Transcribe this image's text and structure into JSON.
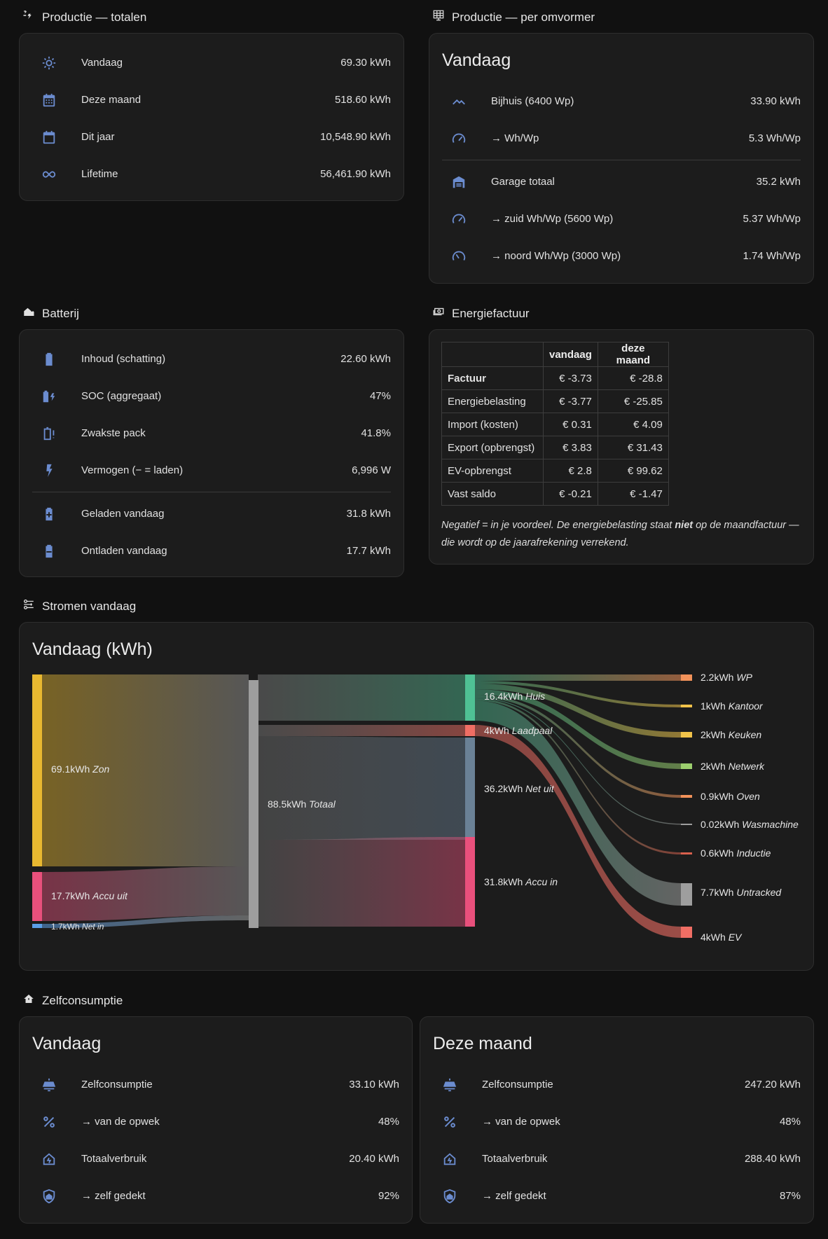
{
  "sections": {
    "productie_totalen": "Productie — totalen",
    "productie_omvormer": "Productie — per omvormer",
    "batterij": "Batterij",
    "energiefactuur": "Energiefactuur",
    "stromen": "Stromen vandaag",
    "zelfconsumptie": "Zelfconsumptie"
  },
  "totalen": [
    {
      "icon": "sun-icon",
      "label": "Vandaag",
      "value": "69.30 kWh"
    },
    {
      "icon": "calendar-month-icon",
      "label": "Deze maand",
      "value": "518.60 kWh"
    },
    {
      "icon": "calendar-icon",
      "label": "Dit jaar",
      "value": "10,548.90 kWh"
    },
    {
      "icon": "infinity-icon",
      "label": "Lifetime",
      "value": "56,461.90 kWh"
    }
  ],
  "omvormer": {
    "title": "Vandaag",
    "rows": [
      {
        "icon": "roof-icon",
        "label": "Bijhuis (6400 Wp)",
        "value": "33.90 kWh"
      },
      {
        "icon": "gauge-icon",
        "label": "→ Wh/Wp",
        "value": "5.3 Wh/Wp"
      },
      {
        "icon": "garage-icon",
        "label": "Garage totaal",
        "value": "35.2 kWh"
      },
      {
        "icon": "gauge-icon",
        "label": "→ zuid Wh/Wp (5600 Wp)",
        "value": "5.37 Wh/Wp"
      },
      {
        "icon": "gauge-low-icon",
        "label": "→ noord Wh/Wp (3000 Wp)",
        "value": "1.74 Wh/Wp"
      }
    ]
  },
  "batterij": [
    {
      "icon": "battery-heart-icon",
      "label": "Inhoud (schatting)",
      "value": "22.60 kWh"
    },
    {
      "icon": "battery-charging-icon",
      "label": "SOC (aggregaat)",
      "value": "47%"
    },
    {
      "icon": "battery-alert-icon",
      "label": "Zwakste pack",
      "value": "41.8%"
    },
    {
      "icon": "lightning-icon",
      "label": "Vermogen (− = laden)",
      "value": "6,996 W"
    },
    {
      "icon": "battery-plus-icon",
      "label": "Geladen vandaag",
      "value": "31.8 kWh"
    },
    {
      "icon": "battery-minus-icon",
      "label": "Ontladen vandaag",
      "value": "17.7 kWh"
    }
  ],
  "factuur": {
    "headers": [
      "",
      "vandaag",
      "deze maand"
    ],
    "rows": [
      {
        "name": "Factuur",
        "vandaag": "€ -3.73",
        "maand": "€ -28.8"
      },
      {
        "name": "Energiebelasting",
        "vandaag": "€ -3.77",
        "maand": "€ -25.85"
      },
      {
        "name": "Import (kosten)",
        "vandaag": "€ 0.31",
        "maand": "€ 4.09"
      },
      {
        "name": "Export (opbrengst)",
        "vandaag": "€ 3.83",
        "maand": "€ 31.43"
      },
      {
        "name": "EV-opbrengst",
        "vandaag": "€ 2.8",
        "maand": "€ 99.62"
      },
      {
        "name": "Vast saldo",
        "vandaag": "€ -0.21",
        "maand": "€ -1.47"
      }
    ],
    "note_pre": "Negatief = in je voordeel. De energiebelasting staat ",
    "note_bold": "niet",
    "note_post": " op de maandfactuur — die wordt op de jaarafrekening verrekend."
  },
  "sankey": {
    "title": "Vandaag (kWh)",
    "colors": {
      "zon": "#e8b830",
      "accu_uit": "#e9507c",
      "net_in": "#5b9ee8",
      "totaal": "#9e9e9e",
      "huis": "#4fc194",
      "laadpaal": "#f06e64",
      "net_uit": "#6a8196",
      "accu_in": "#e9507c",
      "wp": "#f2925a",
      "kantoor": "#f1c34a",
      "keuken": "#f1c34a",
      "netwerk": "#9ccf6e",
      "oven": "#f2925a",
      "wasmachine": "#9e9e9e",
      "inductie": "#d9604d",
      "untracked": "#9e9e9e",
      "ev": "#f06e64"
    },
    "nodes": [
      {
        "id": "zon",
        "value": "69.1kWh",
        "name": "Zon"
      },
      {
        "id": "accu_uit",
        "value": "17.7kWh",
        "name": "Accu uit"
      },
      {
        "id": "net_in",
        "value": "1.7kWh",
        "name": "Net in"
      },
      {
        "id": "totaal",
        "value": "88.5kWh",
        "name": "Totaal"
      },
      {
        "id": "huis",
        "value": "16.4kWh",
        "name": "Huis"
      },
      {
        "id": "laadpaal",
        "value": "4kWh",
        "name": "Laadpaal"
      },
      {
        "id": "net_uit",
        "value": "36.2kWh",
        "name": "Net uit"
      },
      {
        "id": "accu_in",
        "value": "31.8kWh",
        "name": "Accu in"
      },
      {
        "id": "wp",
        "value": "2.2kWh",
        "name": "WP"
      },
      {
        "id": "kantoor",
        "value": "1kWh",
        "name": "Kantoor"
      },
      {
        "id": "keuken",
        "value": "2kWh",
        "name": "Keuken"
      },
      {
        "id": "netwerk",
        "value": "2kWh",
        "name": "Netwerk"
      },
      {
        "id": "oven",
        "value": "0.9kWh",
        "name": "Oven"
      },
      {
        "id": "wasmachine",
        "value": "0.02kWh",
        "name": "Wasmachine"
      },
      {
        "id": "inductie",
        "value": "0.6kWh",
        "name": "Inductie"
      },
      {
        "id": "untracked",
        "value": "7.7kWh",
        "name": "Untracked"
      },
      {
        "id": "ev",
        "value": "4kWh",
        "name": "EV"
      }
    ]
  },
  "zelf": [
    {
      "title": "Vandaag",
      "rows": [
        {
          "icon": "solar-panel-icon",
          "label": "Zelfconsumptie",
          "value": "33.10 kWh"
        },
        {
          "icon": "percent-icon",
          "label": "→ van de opwek",
          "value": "48%"
        },
        {
          "icon": "home-lightning-icon",
          "label": "Totaalverbruik",
          "value": "20.40 kWh"
        },
        {
          "icon": "shield-home-icon",
          "label": "→ zelf gedekt",
          "value": "92%"
        }
      ]
    },
    {
      "title": "Deze maand",
      "rows": [
        {
          "icon": "solar-panel-icon",
          "label": "Zelfconsumptie",
          "value": "247.20 kWh"
        },
        {
          "icon": "percent-icon",
          "label": "→ van de opwek",
          "value": "48%"
        },
        {
          "icon": "home-lightning-icon",
          "label": "Totaalverbruik",
          "value": "288.40 kWh"
        },
        {
          "icon": "shield-home-icon",
          "label": "→ zelf gedekt",
          "value": "87%"
        }
      ]
    }
  ]
}
